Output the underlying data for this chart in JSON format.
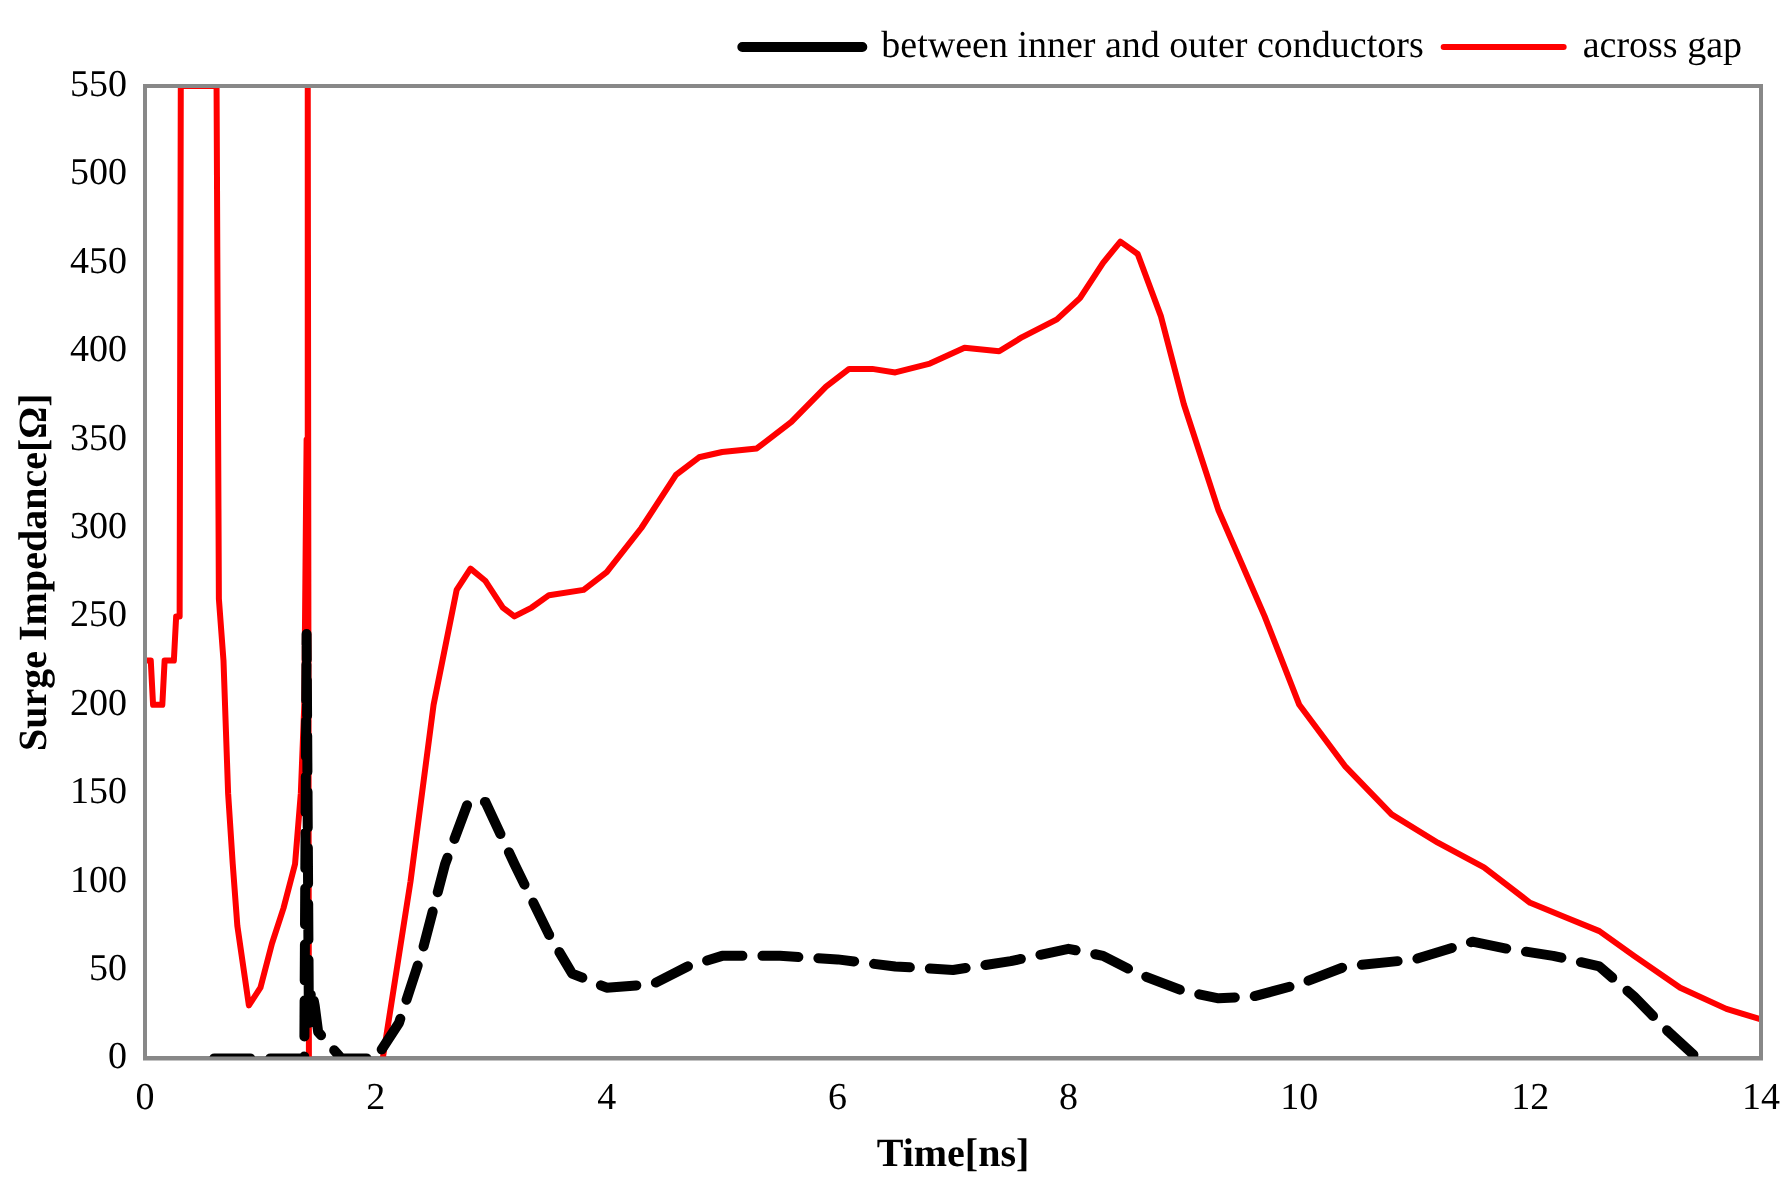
{
  "chart_data": {
    "type": "line",
    "xlabel": "Time[ns]",
    "ylabel": "Surge Impedance[Ω]",
    "xlim": [
      0,
      14
    ],
    "ylim": [
      0,
      550
    ],
    "xticks": [
      0,
      2,
      4,
      6,
      8,
      10,
      12,
      14
    ],
    "yticks": [
      0,
      50,
      100,
      150,
      200,
      250,
      300,
      350,
      400,
      450,
      500,
      550
    ],
    "grid": false,
    "legend": "top right",
    "marker": "none",
    "series": [
      {
        "name": "across gap",
        "color": "#ff0000",
        "line_style": "solid",
        "x": [
          0,
          0.05,
          0.07,
          0.15,
          0.17,
          0.25,
          0.27,
          0.3,
          0.31,
          0.62,
          0.64,
          0.68,
          0.72,
          0.76,
          0.8,
          0.9,
          1.0,
          1.1,
          1.2,
          1.3,
          1.35,
          1.38,
          1.4,
          1.41,
          1.42,
          1.7,
          2.06,
          2.3,
          2.5,
          2.7,
          2.82,
          2.95,
          3.1,
          3.2,
          3.35,
          3.5,
          3.8,
          4.0,
          4.3,
          4.6,
          4.8,
          5.0,
          5.3,
          5.6,
          5.9,
          6.1,
          6.3,
          6.5,
          6.8,
          7.1,
          7.4,
          7.6,
          7.9,
          8.1,
          8.3,
          8.45,
          8.6,
          8.8,
          9.0,
          9.3,
          9.7,
          10.0,
          10.4,
          10.8,
          11.2,
          11.6,
          12.0,
          12.3,
          12.6,
          12.9,
          13.3,
          13.7,
          14.0
        ],
        "values": [
          225,
          225,
          200,
          200,
          225,
          225,
          250,
          250,
          550,
          550,
          260,
          225,
          150,
          110,
          75,
          30,
          40,
          65,
          85,
          110,
          150,
          200,
          350,
          550,
          0,
          null,
          0,
          100,
          200,
          265,
          277,
          270,
          255,
          250,
          255,
          262,
          265,
          275,
          300,
          330,
          340,
          343,
          345,
          360,
          380,
          390,
          390,
          388,
          393,
          402,
          400,
          408,
          418,
          430,
          450,
          462,
          455,
          420,
          370,
          310,
          250,
          200,
          165,
          138,
          122,
          108,
          88,
          80,
          72,
          58,
          40,
          28,
          22
        ]
      },
      {
        "name": "between inner and outer conductors",
        "color": "#000000",
        "line_style": "dashed",
        "x": [
          0.6,
          1.38,
          1.4,
          1.42,
          1.44,
          1.47,
          1.5,
          1.7,
          2.0,
          2.2,
          2.4,
          2.6,
          2.8,
          2.95,
          3.2,
          3.5,
          3.7,
          4.0,
          4.4,
          4.7,
          5.0,
          5.5,
          6.0,
          6.5,
          7.0,
          7.5,
          8.0,
          8.3,
          8.6,
          9.0,
          9.3,
          9.6,
          10.0,
          10.4,
          11.0,
          11.5,
          11.8,
          12.2,
          12.6,
          12.9,
          13.2,
          13.45
        ],
        "values": [
          0,
          0,
          240,
          20,
          40,
          30,
          15,
          0,
          0,
          20,
          60,
          110,
          145,
          145,
          110,
          70,
          48,
          40,
          42,
          52,
          58,
          58,
          56,
          52,
          50,
          55,
          62,
          58,
          48,
          38,
          34,
          35,
          42,
          52,
          56,
          66,
          62,
          58,
          52,
          35,
          15,
          0
        ]
      }
    ]
  }
}
